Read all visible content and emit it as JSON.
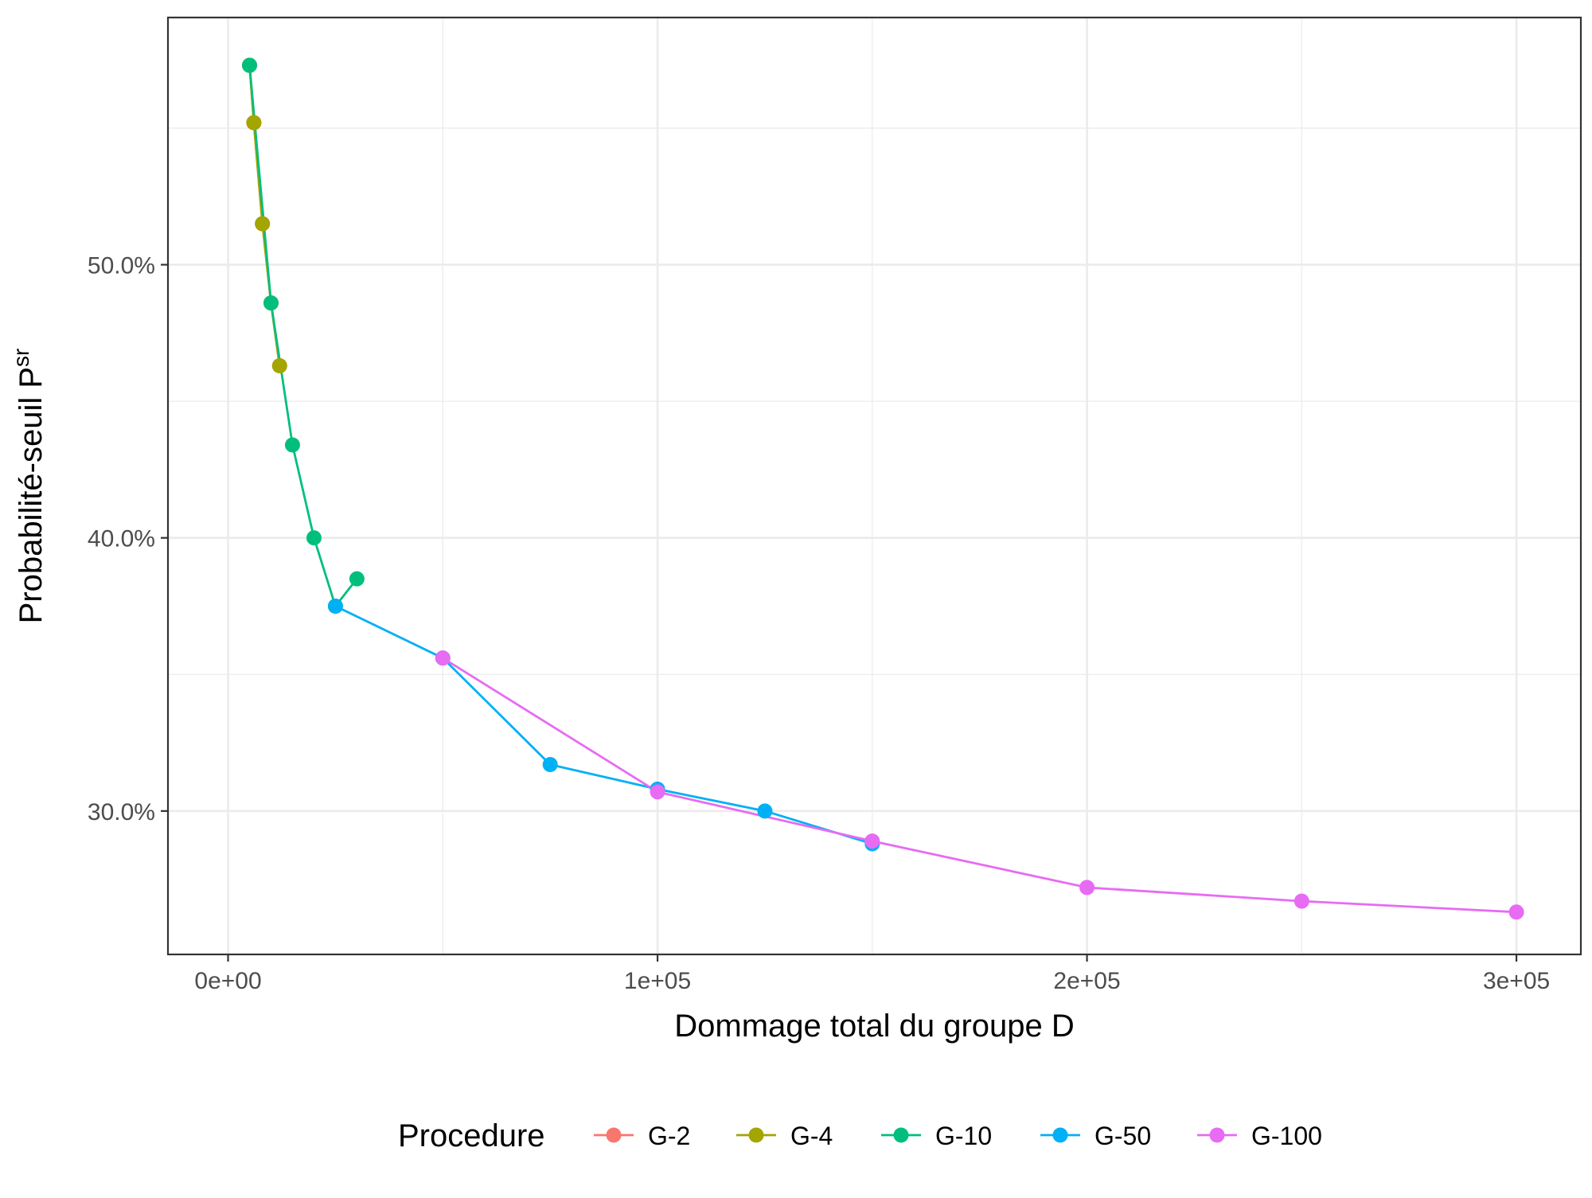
{
  "chart_data": {
    "type": "line",
    "title": "",
    "xlabel": "Dommage total du groupe D",
    "ylabel": "Probabilité-seuil P",
    "ylabel_superscript": "sr",
    "xlim": [
      -14000,
      315000
    ],
    "ylim": [
      0.2475,
      0.5905
    ],
    "x_ticks": [
      {
        "value": 0,
        "label": "0e+00"
      },
      {
        "value": 100000,
        "label": "1e+05"
      },
      {
        "value": 200000,
        "label": "2e+05"
      },
      {
        "value": 300000,
        "label": "3e+05"
      }
    ],
    "x_minor": [
      50000,
      150000,
      250000
    ],
    "y_ticks": [
      {
        "value": 0.3,
        "label": "30.0%"
      },
      {
        "value": 0.4,
        "label": "40.0%"
      },
      {
        "value": 0.5,
        "label": "50.0%"
      }
    ],
    "y_minor": [
      0.35,
      0.45,
      0.55
    ],
    "grid": true,
    "legend": {
      "title": "Procedure",
      "position": "bottom"
    },
    "series": [
      {
        "name": "G-2",
        "color": "#F8766D",
        "x": [
          5000,
          6000,
          8000,
          10000,
          12000
        ],
        "y": [
          0.573,
          0.552,
          0.515,
          0.486,
          0.463
        ]
      },
      {
        "name": "G-4",
        "color": "#A3A500",
        "x": [
          5000,
          6000,
          8000,
          10000,
          12000
        ],
        "y": [
          0.573,
          0.552,
          0.515,
          0.486,
          0.463
        ]
      },
      {
        "name": "G-10",
        "color": "#00BF7D",
        "x": [
          5000,
          10000,
          15000,
          20000,
          25000,
          30000
        ],
        "y": [
          0.573,
          0.486,
          0.434,
          0.4,
          0.375,
          0.385
        ]
      },
      {
        "name": "G-50",
        "color": "#00B0F6",
        "x": [
          25000,
          50000,
          75000,
          100000,
          125000,
          150000
        ],
        "y": [
          0.375,
          0.356,
          0.317,
          0.308,
          0.3,
          0.288
        ]
      },
      {
        "name": "G-100",
        "color": "#E76BF3",
        "x": [
          50000,
          100000,
          150000,
          200000,
          250000,
          300000
        ],
        "y": [
          0.356,
          0.307,
          0.289,
          0.272,
          0.267,
          0.263
        ]
      }
    ]
  }
}
